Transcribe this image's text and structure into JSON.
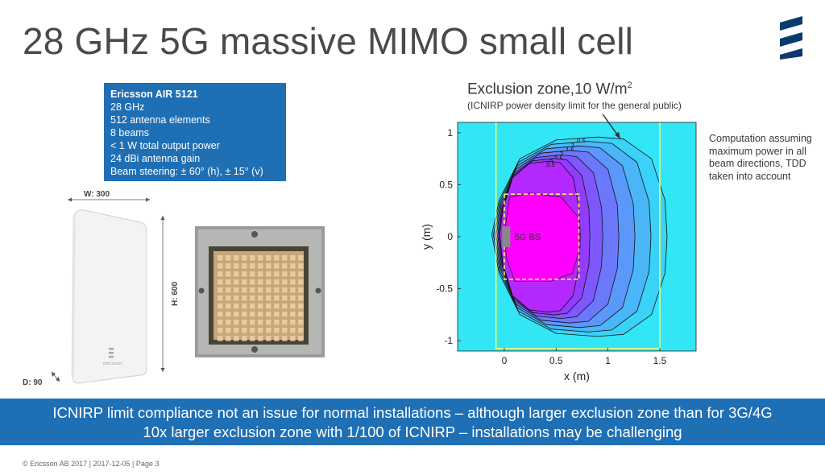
{
  "slide": {
    "title": "28 GHz 5G massive MIMO small cell",
    "logo_color": "#0a3a6e"
  },
  "spec_box": {
    "heading": "Ericsson AIR 5121",
    "lines": [
      "28 GHz",
      "512 antenna elements",
      "8 beams",
      "< 1 W total output power",
      "24 dBi antenna gain",
      "Beam steering: ± 60° (h), ± 15° (v)"
    ],
    "bg_color": "#1f6fb5"
  },
  "device": {
    "width_label": "W: 300",
    "height_label": "H: 600",
    "depth_label": "D: 90",
    "brand_text": "ERICSSON"
  },
  "exclusion": {
    "title": "Exclusion zone,10 W/m",
    "title_sup": "2",
    "subtitle": "(ICNIRP power density limit for the general public)",
    "note": "Computation assuming maximum power in all beam directions, TDD taken into account"
  },
  "chart_data": {
    "type": "heatmap",
    "xlabel": "x (m)",
    "ylabel": "y (m)",
    "xlim": [
      -0.45,
      1.85
    ],
    "ylim": [
      -1.1,
      1.1
    ],
    "x_ticks": [
      "0",
      "0.5",
      "1",
      "1.5"
    ],
    "x_tick_values": [
      0,
      0.5,
      1,
      1.5
    ],
    "y_ticks": [
      "1",
      "0.5",
      "0",
      "-0.5",
      "-1"
    ],
    "y_tick_values": [
      1,
      0.5,
      0,
      -0.5,
      -1
    ],
    "contour_levels": [
      "0.5",
      "1",
      "1.5",
      "2",
      "2.5",
      "3",
      "3.5"
    ],
    "bs_label": "5G BS",
    "colors": {
      "background": "#33e6f5",
      "high": "#ff00ff",
      "mid": "#8a3cff",
      "boundary": "#ffff66"
    }
  },
  "banner": {
    "line1": "ICNIRP limit compliance not an issue for normal installations – although larger exclusion zone than for 3G/4G",
    "line2": "10x larger exclusion zone with 1/100 of ICNIRP – installations may be challenging"
  },
  "footer": {
    "text": "© Ericsson AB 2017  |  2017-12-05  |  Page 3"
  }
}
